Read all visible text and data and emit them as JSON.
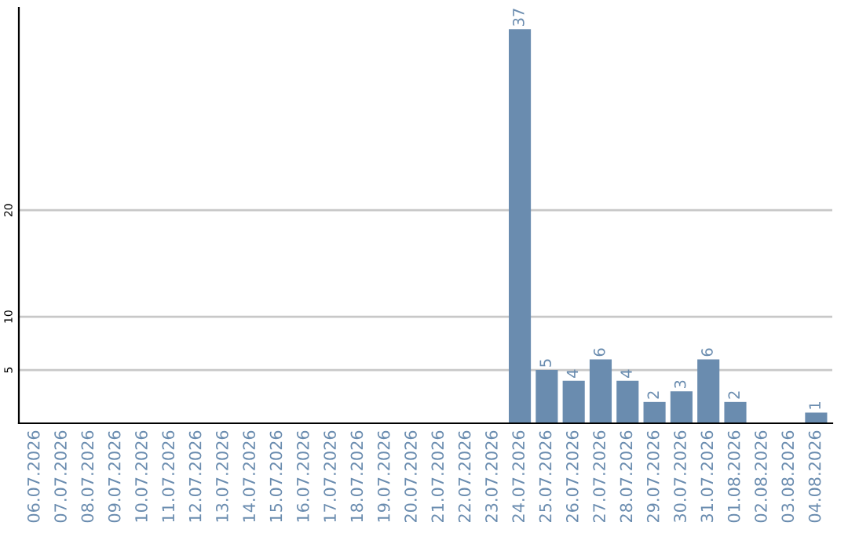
{
  "chart_data": {
    "type": "bar",
    "categories": [
      "06.07.2026",
      "07.07.2026",
      "08.07.2026",
      "09.07.2026",
      "10.07.2026",
      "11.07.2026",
      "12.07.2026",
      "13.07.2026",
      "14.07.2026",
      "15.07.2026",
      "16.07.2026",
      "17.07.2026",
      "18.07.2026",
      "19.07.2026",
      "20.07.2026",
      "21.07.2026",
      "22.07.2026",
      "23.07.2026",
      "24.07.2026",
      "25.07.2026",
      "26.07.2026",
      "27.07.2026",
      "28.07.2026",
      "29.07.2026",
      "30.07.2026",
      "31.07.2026",
      "01.08.2026",
      "02.08.2026",
      "03.08.2026",
      "04.08.2026"
    ],
    "values": [
      0,
      0,
      0,
      0,
      0,
      0,
      0,
      0,
      0,
      0,
      0,
      0,
      0,
      0,
      0,
      0,
      0,
      0,
      37,
      5,
      4,
      6,
      4,
      2,
      3,
      6,
      2,
      0,
      0,
      1
    ],
    "value_labels": [
      null,
      null,
      null,
      null,
      null,
      null,
      null,
      null,
      null,
      null,
      null,
      null,
      null,
      null,
      null,
      null,
      null,
      null,
      "37",
      "5",
      "4",
      "6",
      "4",
      "2",
      "3",
      "6",
      "2",
      null,
      null,
      "1"
    ],
    "color": "#6a8caf",
    "ylim": [
      0,
      39
    ],
    "yticks": [
      5,
      10,
      20
    ],
    "grid": "y",
    "legend": false
  }
}
